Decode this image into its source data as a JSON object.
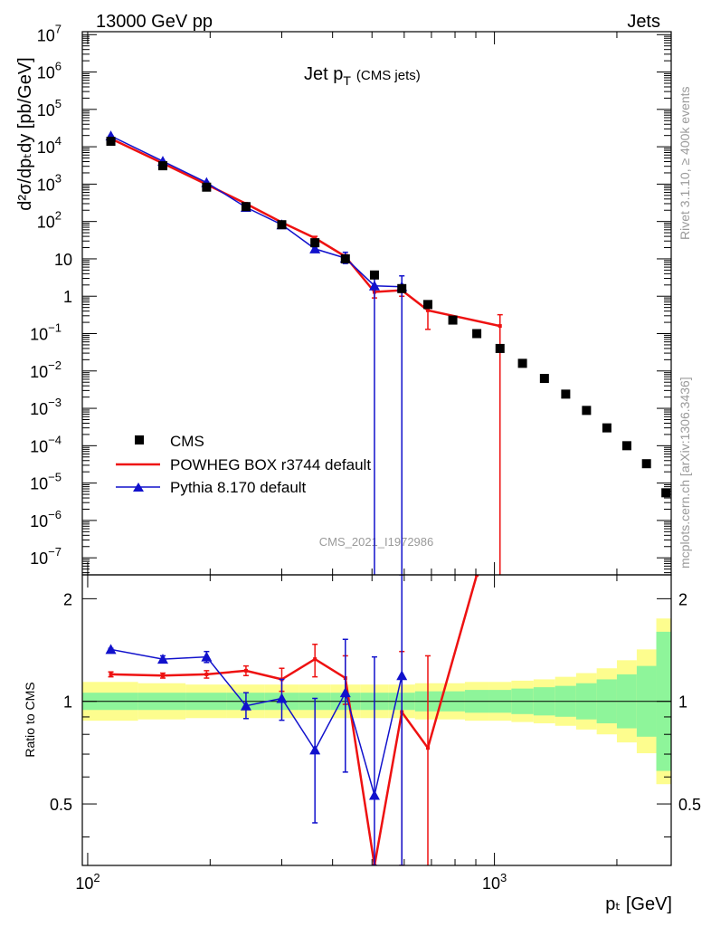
{
  "header": {
    "energy": "13000 GeV pp",
    "category": "Jets",
    "title_main": "Jet p",
    "title_sub": "T",
    "title_paren": "(CMS jets)",
    "analysis_id": "CMS_2021_I1972986",
    "side_rivet": "Rivet 3.1.10, ≥ 400k events",
    "side_mcplots": "mcplots.cern.ch [arXiv:1306.3436]"
  },
  "axes": {
    "ylabel_main": "d²σ/dpₜdy [pb/GeV]",
    "ylabel_ratio": "Ratio to CMS",
    "xlabel": "pₜ [GeV]"
  },
  "legend": {
    "entries": [
      {
        "label": "CMS",
        "color": "#000000",
        "marker": "square"
      },
      {
        "label": "POWHEG BOX r3744 default",
        "color": "#ee1111",
        "marker": "line"
      },
      {
        "label": "Pythia 8.170 default",
        "color": "#1111cc",
        "marker": "triangle"
      }
    ]
  },
  "chart_data": {
    "type": "line",
    "x_scale": "log",
    "y_scale_main": "log",
    "xlim": [
      97,
      2720
    ],
    "ylim_main": [
      3.5e-08,
      12000000.0
    ],
    "ylim_ratio": [
      0.33,
      2.35
    ],
    "x_ticks": [
      {
        "value": 100,
        "base": "10",
        "exp": "2"
      },
      {
        "value": 1000,
        "base": "10",
        "exp": "3"
      }
    ],
    "y_ticks_main": [
      {
        "value": 10000000.0,
        "base": "10",
        "exp": "7"
      },
      {
        "value": 1000000.0,
        "base": "10",
        "exp": "6"
      },
      {
        "value": 100000.0,
        "base": "10",
        "exp": "5"
      },
      {
        "value": 10000.0,
        "base": "10",
        "exp": "4"
      },
      {
        "value": 1000.0,
        "base": "10",
        "exp": "3"
      },
      {
        "value": 100.0,
        "base": "10",
        "exp": "2"
      },
      {
        "value": 10,
        "base": "10",
        "exp": ""
      },
      {
        "value": 1,
        "base": "1",
        "exp": ""
      },
      {
        "value": 0.1,
        "base": "10",
        "exp": "−1"
      },
      {
        "value": 0.01,
        "base": "10",
        "exp": "−2"
      },
      {
        "value": 0.001,
        "base": "10",
        "exp": "−3"
      },
      {
        "value": 0.0001,
        "base": "10",
        "exp": "−4"
      },
      {
        "value": 1e-05,
        "base": "10",
        "exp": "−5"
      },
      {
        "value": 1e-06,
        "base": "10",
        "exp": "−6"
      },
      {
        "value": 1e-07,
        "base": "10",
        "exp": "−7"
      }
    ],
    "y_ticks_ratio": [
      {
        "value": 2,
        "label": "2"
      },
      {
        "value": 1,
        "label": "1"
      },
      {
        "value": 0.5,
        "label": "0.5"
      }
    ],
    "bins": [
      {
        "lo": 97,
        "hi": 133
      },
      {
        "lo": 133,
        "hi": 174
      },
      {
        "lo": 174,
        "hi": 220
      },
      {
        "lo": 220,
        "hi": 272
      },
      {
        "lo": 272,
        "hi": 330
      },
      {
        "lo": 330,
        "hi": 395
      },
      {
        "lo": 395,
        "hi": 468
      },
      {
        "lo": 468,
        "hi": 548
      },
      {
        "lo": 548,
        "hi": 638
      },
      {
        "lo": 638,
        "hi": 737
      },
      {
        "lo": 737,
        "hi": 846
      },
      {
        "lo": 846,
        "hi": 967
      },
      {
        "lo": 967,
        "hi": 1101
      },
      {
        "lo": 1101,
        "hi": 1248
      },
      {
        "lo": 1248,
        "hi": 1410
      },
      {
        "lo": 1410,
        "hi": 1588
      },
      {
        "lo": 1588,
        "hi": 1784
      },
      {
        "lo": 1784,
        "hi": 2000
      },
      {
        "lo": 2000,
        "hi": 2238
      },
      {
        "lo": 2238,
        "hi": 2500
      },
      {
        "lo": 2500,
        "hi": 2720
      }
    ],
    "band_outer": [
      1.14,
      1.13,
      1.12,
      1.12,
      1.12,
      1.12,
      1.12,
      1.12,
      1.12,
      1.13,
      1.13,
      1.14,
      1.14,
      1.15,
      1.16,
      1.18,
      1.21,
      1.25,
      1.32,
      1.42,
      1.75
    ],
    "band_inner": [
      1.06,
      1.06,
      1.06,
      1.06,
      1.06,
      1.06,
      1.06,
      1.06,
      1.06,
      1.07,
      1.07,
      1.08,
      1.08,
      1.09,
      1.1,
      1.11,
      1.13,
      1.16,
      1.2,
      1.27,
      1.6
    ],
    "series": [
      {
        "name": "CMS",
        "color": "#000000",
        "points": [
          {
            "x": 114,
            "y": 14000
          },
          {
            "x": 153,
            "y": 3100
          },
          {
            "x": 196,
            "y": 830
          },
          {
            "x": 245,
            "y": 250
          },
          {
            "x": 300,
            "y": 82
          },
          {
            "x": 362,
            "y": 27
          },
          {
            "x": 430,
            "y": 10
          },
          {
            "x": 507,
            "y": 3.7
          },
          {
            "x": 592,
            "y": 1.6
          },
          {
            "x": 686,
            "y": 0.6
          },
          {
            "x": 790,
            "y": 0.23
          },
          {
            "x": 905,
            "y": 0.1
          },
          {
            "x": 1032,
            "y": 0.04
          },
          {
            "x": 1172,
            "y": 0.016
          },
          {
            "x": 1327,
            "y": 0.0063
          },
          {
            "x": 1497,
            "y": 0.0024
          },
          {
            "x": 1684,
            "y": 0.00088
          },
          {
            "x": 1890,
            "y": 0.0003
          },
          {
            "x": 2116,
            "y": 0.0001
          },
          {
            "x": 2365,
            "y": 3.3e-05
          },
          {
            "x": 2640,
            "y": 5.5e-06
          }
        ]
      },
      {
        "name": "POWHEG BOX r3744 default",
        "color": "#ee1111",
        "points": [
          {
            "x": 114,
            "y": 16500,
            "lo": 16000,
            "hi": 17000
          },
          {
            "x": 153,
            "y": 3600,
            "lo": 3500,
            "hi": 3700
          },
          {
            "x": 196,
            "y": 980,
            "lo": 940,
            "hi": 1020
          },
          {
            "x": 245,
            "y": 300,
            "lo": 285,
            "hi": 315
          },
          {
            "x": 300,
            "y": 95,
            "lo": 88,
            "hi": 102
          },
          {
            "x": 362,
            "y": 36,
            "lo": 32,
            "hi": 40
          },
          {
            "x": 430,
            "y": 11.5,
            "lo": 9.8,
            "hi": 13
          },
          {
            "x": 507,
            "y": 1.3,
            "lo": 0.9,
            "hi": 1.7
          },
          {
            "x": 592,
            "y": 1.45,
            "lo": 1.0,
            "hi": 1.9
          },
          {
            "x": 686,
            "y": 0.42,
            "lo": 0.13,
            "hi": 0.7
          },
          {
            "x": 1032,
            "y": 0.16,
            "lo": 0,
            "hi": 0.32
          }
        ]
      },
      {
        "name": "Pythia 8.170 default",
        "color": "#1111cc",
        "points": [
          {
            "x": 114,
            "y": 19500,
            "lo": 19000,
            "hi": 20000
          },
          {
            "x": 153,
            "y": 4100,
            "lo": 4000,
            "hi": 4200
          },
          {
            "x": 196,
            "y": 1100,
            "lo": 1060,
            "hi": 1140
          },
          {
            "x": 245,
            "y": 240,
            "lo": 225,
            "hi": 255
          },
          {
            "x": 300,
            "y": 82,
            "lo": 75,
            "hi": 90
          },
          {
            "x": 362,
            "y": 18.5,
            "lo": 15.5,
            "hi": 21
          },
          {
            "x": 430,
            "y": 10.5,
            "lo": 7.5,
            "hi": 15
          },
          {
            "x": 507,
            "y": 1.9,
            "lo": 0,
            "hi": 3.7
          },
          {
            "x": 592,
            "y": 1.8,
            "lo": 0,
            "hi": 3.5
          }
        ]
      }
    ],
    "ratio_series": [
      {
        "name": "POWHEG BOX r3744 default",
        "color": "#ee1111",
        "points": [
          {
            "x": 114,
            "y": 1.2,
            "lo": 1.18,
            "hi": 1.22
          },
          {
            "x": 153,
            "y": 1.19,
            "lo": 1.17,
            "hi": 1.21
          },
          {
            "x": 196,
            "y": 1.2,
            "lo": 1.17,
            "hi": 1.23
          },
          {
            "x": 245,
            "y": 1.23,
            "lo": 1.19,
            "hi": 1.27
          },
          {
            "x": 300,
            "y": 1.16,
            "lo": 1.07,
            "hi": 1.25
          },
          {
            "x": 362,
            "y": 1.33,
            "lo": 1.18,
            "hi": 1.47
          },
          {
            "x": 430,
            "y": 1.17,
            "lo": 0.98,
            "hi": 1.36
          },
          {
            "x": 507,
            "y": 0.33
          },
          {
            "x": 592,
            "y": 0.93,
            "lo": 0.33,
            "hi": 1.4
          },
          {
            "x": 686,
            "y": 0.73,
            "lo": 0.2,
            "hi": 1.36
          },
          {
            "x": 905,
            "y": 2.35
          }
        ]
      },
      {
        "name": "Pythia 8.170 default",
        "color": "#1111cc",
        "points": [
          {
            "x": 114,
            "y": 1.42,
            "lo": 1.41,
            "hi": 1.43
          },
          {
            "x": 153,
            "y": 1.33,
            "lo": 1.3,
            "hi": 1.36
          },
          {
            "x": 196,
            "y": 1.35,
            "lo": 1.3,
            "hi": 1.4
          },
          {
            "x": 245,
            "y": 0.97,
            "lo": 0.89,
            "hi": 1.06
          },
          {
            "x": 300,
            "y": 1.02,
            "lo": 0.88,
            "hi": 1.16
          },
          {
            "x": 362,
            "y": 0.72,
            "lo": 0.44,
            "hi": 1.02
          },
          {
            "x": 430,
            "y": 1.06,
            "lo": 0.62,
            "hi": 1.52
          },
          {
            "x": 507,
            "y": 0.53,
            "lo": 0.33,
            "hi": 1.35
          },
          {
            "x": 592,
            "y": 1.19,
            "lo": 0.33,
            "hi": 2.35
          }
        ]
      }
    ]
  }
}
